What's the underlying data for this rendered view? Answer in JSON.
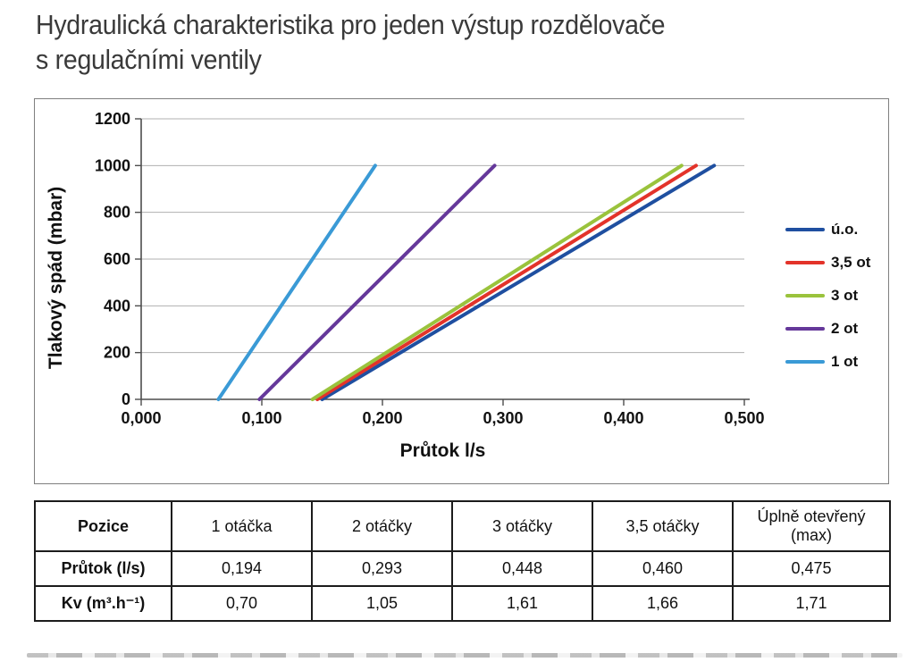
{
  "page": {
    "title": "Hydraulická charakteristika pro jeden výstup rozdělovače\ns regulačními ventily"
  },
  "chart_data": {
    "type": "line",
    "title": "",
    "xlabel": "Průtok l/s",
    "ylabel": "Tlakový spád (mbar)",
    "xlim": [
      0,
      0.5
    ],
    "ylim": [
      0,
      1200
    ],
    "x_tick_values": [
      0,
      0.1,
      0.2,
      0.3,
      0.4,
      0.5
    ],
    "x_tick_labels": [
      "0,000",
      "0,100",
      "0,200",
      "0,300",
      "0,400",
      "0,500"
    ],
    "y_tick_values": [
      0,
      200,
      400,
      600,
      800,
      1000,
      1200
    ],
    "grid": "horizontal",
    "legend_position": "right",
    "grid_color": "#b0b0b0",
    "axis_color": "#4d4d4d",
    "series": [
      {
        "name": "ú.o.",
        "color": "#1f4fa0",
        "points": [
          [
            0.15,
            0
          ],
          [
            0.475,
            1000
          ]
        ]
      },
      {
        "name": "3,5 ot",
        "color": "#e3332a",
        "points": [
          [
            0.146,
            0
          ],
          [
            0.46,
            1000
          ]
        ]
      },
      {
        "name": "3 ot",
        "color": "#9ac33c",
        "points": [
          [
            0.142,
            0
          ],
          [
            0.448,
            1000
          ]
        ]
      },
      {
        "name": "2 ot",
        "color": "#65389a",
        "points": [
          [
            0.098,
            0
          ],
          [
            0.293,
            1000
          ]
        ]
      },
      {
        "name": "1 ot",
        "color": "#3a9ad6",
        "points": [
          [
            0.064,
            0
          ],
          [
            0.194,
            1000
          ]
        ]
      }
    ]
  },
  "table": {
    "columns": [
      "Pozice",
      "1 otáčka",
      "2 otáčky",
      "3 otáčky",
      "3,5 otáčky",
      "Úplně otevřený\n(max)"
    ],
    "rows": [
      {
        "label": "Průtok (l/s)",
        "values": [
          "0,194",
          "0,293",
          "0,448",
          "0,460",
          "0,475"
        ]
      },
      {
        "label": "Kv (m³.h⁻¹)",
        "values": [
          "0,70",
          "1,05",
          "1,61",
          "1,66",
          "1,71"
        ]
      }
    ]
  }
}
